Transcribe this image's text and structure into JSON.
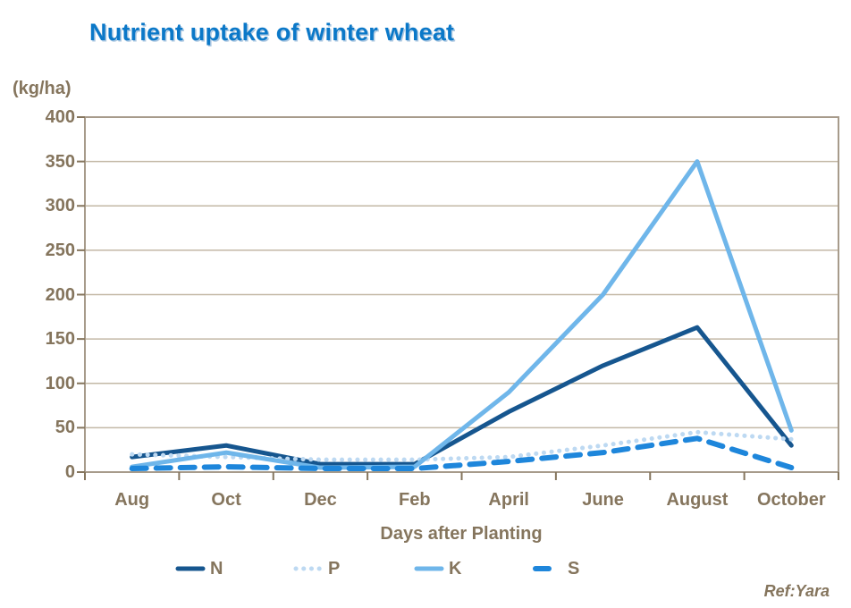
{
  "title": "Nutrient uptake of winter wheat",
  "y_axis_unit": "(kg/ha)",
  "x_axis_title": "Days after Planting",
  "reference": "Ref:Yara",
  "colors": {
    "title": "#0b78c8",
    "axis_text": "#85755d",
    "gridline": "#c3b8a6",
    "plot_border": "#a79b8b",
    "tick": "#85755d"
  },
  "chart_data": {
    "type": "line",
    "title": "Nutrient uptake of winter wheat",
    "categories": [
      "Aug",
      "Oct",
      "Dec",
      "Feb",
      "April",
      "June",
      "August",
      "October"
    ],
    "series": [
      {
        "name": "N",
        "style": "solid",
        "color": "#16568f",
        "values": [
          17,
          30,
          9,
          9,
          68,
          120,
          163,
          30
        ]
      },
      {
        "name": "P",
        "style": "dotted",
        "color": "#bdd9f2",
        "values": [
          20,
          17,
          14,
          14,
          17,
          30,
          45,
          37
        ]
      },
      {
        "name": "K",
        "style": "solid",
        "color": "#6fb6ea",
        "values": [
          6,
          22,
          5,
          6,
          90,
          200,
          350,
          47
        ]
      },
      {
        "name": "S",
        "style": "dashed",
        "color": "#1e86db",
        "values": [
          4,
          6,
          4,
          4,
          12,
          22,
          38,
          5
        ]
      }
    ],
    "xlabel": "Days after Planting",
    "ylabel": "(kg/ha)",
    "ylim": [
      0,
      400
    ],
    "ytick_step": 50,
    "grid": true,
    "legend_position": "bottom",
    "annotations": [
      "Ref:Yara"
    ]
  }
}
